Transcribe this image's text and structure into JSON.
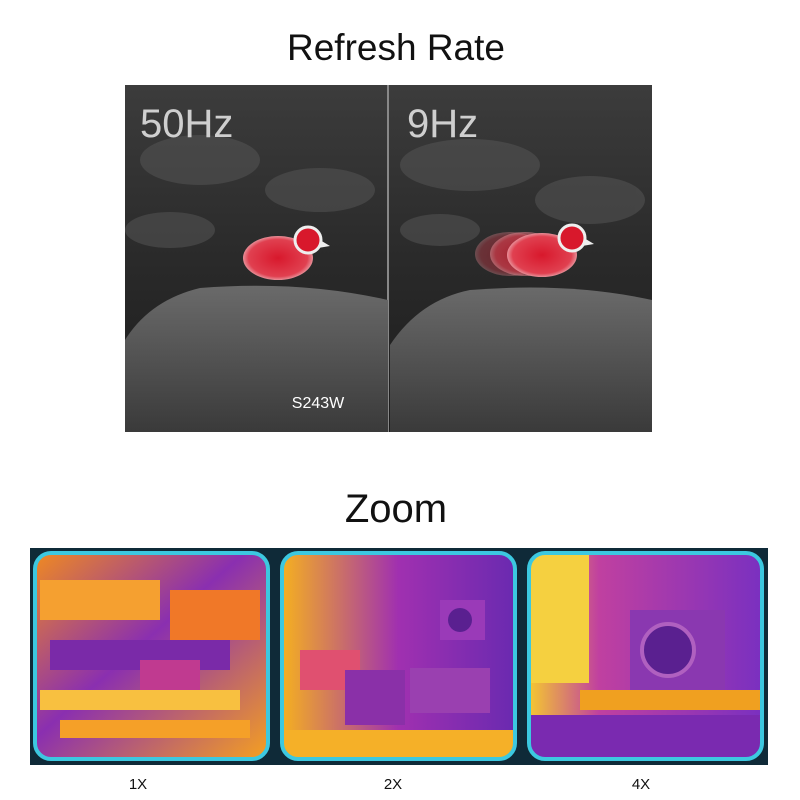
{
  "refresh_section": {
    "title": "Refresh Rate",
    "panels": [
      {
        "label": "50Hz"
      },
      {
        "label": "9Hz"
      }
    ],
    "model": "S243W"
  },
  "zoom_section": {
    "title": "Zoom",
    "panels": [
      {
        "label": "1X"
      },
      {
        "label": "2X"
      },
      {
        "label": "4X"
      }
    ]
  }
}
